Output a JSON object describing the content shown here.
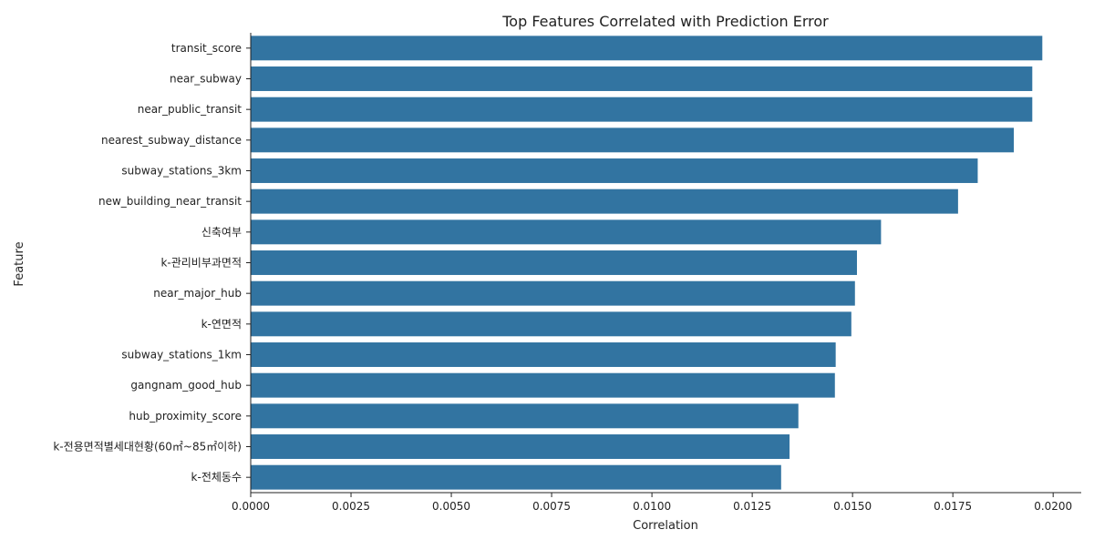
{
  "chart_data": {
    "type": "bar",
    "orientation": "horizontal",
    "title": "Top Features Correlated with Prediction Error",
    "xlabel": "Correlation",
    "ylabel": "Feature",
    "xlim": [
      0,
      0.0207
    ],
    "xticks": [
      0.0,
      0.0025,
      0.005,
      0.0075,
      0.01,
      0.0125,
      0.015,
      0.0175,
      0.02
    ],
    "xtick_labels": [
      "0.0000",
      "0.0025",
      "0.0050",
      "0.0075",
      "0.0100",
      "0.0125",
      "0.0150",
      "0.0175",
      "0.0200"
    ],
    "grid": false,
    "bar_color": "#3274a1",
    "categories": [
      "transit_score",
      "near_subway",
      "near_public_transit",
      "nearest_subway_distance",
      "subway_stations_3km",
      "new_building_near_transit",
      "신축여부",
      "k-관리비부과면적",
      "near_major_hub",
      "k-연면적",
      "subway_stations_1km",
      "gangnam_good_hub",
      "hub_proximity_score",
      "k-전용면적별세대현황(60㎡~85㎡이하)",
      "k-전체동수"
    ],
    "values": [
      0.01973,
      0.01948,
      0.01948,
      0.01902,
      0.01812,
      0.01763,
      0.01571,
      0.01511,
      0.01506,
      0.01497,
      0.01458,
      0.01456,
      0.01365,
      0.01343,
      0.01322
    ]
  }
}
